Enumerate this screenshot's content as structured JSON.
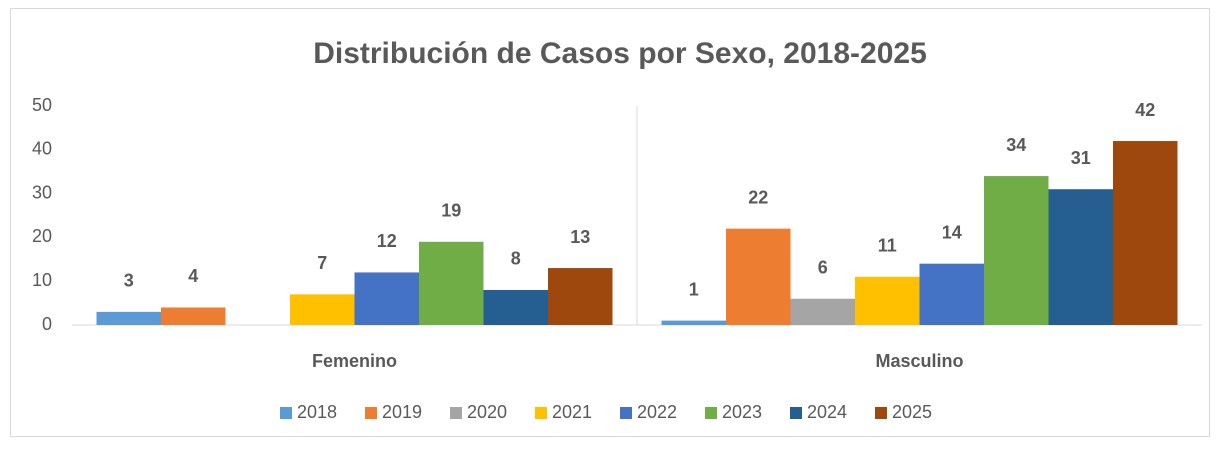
{
  "chart_data": {
    "type": "bar",
    "title": "Distribución de Casos por Sexo, 2018-2025",
    "categories": [
      "Femenino",
      "Masculino"
    ],
    "series": [
      {
        "name": "2018",
        "color": "#5b9bd5",
        "values": [
          3,
          1
        ]
      },
      {
        "name": "2019",
        "color": "#ed7d31",
        "values": [
          4,
          22
        ]
      },
      {
        "name": "2020",
        "color": "#a5a5a5",
        "values": [
          null,
          6
        ]
      },
      {
        "name": "2021",
        "color": "#ffc000",
        "values": [
          7,
          11
        ]
      },
      {
        "name": "2022",
        "color": "#4472c4",
        "values": [
          12,
          14
        ]
      },
      {
        "name": "2023",
        "color": "#70ad47",
        "values": [
          19,
          34
        ]
      },
      {
        "name": "2024",
        "color": "#255e91",
        "values": [
          8,
          31
        ]
      },
      {
        "name": "2025",
        "color": "#9e480e",
        "values": [
          13,
          42
        ]
      }
    ],
    "ylim": [
      0,
      50
    ],
    "yticks": [
      0,
      10,
      20,
      30,
      40,
      50
    ],
    "legend": "bottom"
  }
}
